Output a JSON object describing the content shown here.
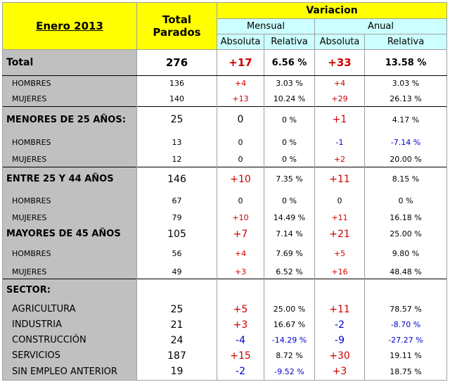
{
  "header": {
    "title": "Enero 2013",
    "total_line1": "Total",
    "total_line2": "Parados",
    "variacion": "Variacion",
    "mensual": "Mensual",
    "anual": "Anual",
    "absoluta_m": "Absoluta",
    "relativa_m": "Relativa",
    "absoluta_a": "Absoluta",
    "relativa_a": "Relativa"
  },
  "rows": [
    {
      "label": "Total",
      "total": "276",
      "m_abs": "+17",
      "m_rel": "6.56 %",
      "a_abs": "+33",
      "a_rel": "13.58 %"
    },
    {
      "label": "HOMBRES",
      "total": "136",
      "m_abs": "+4",
      "m_rel": "3.03 %",
      "a_abs": "+4",
      "a_rel": "3.03 %"
    },
    {
      "label": "MUJERES",
      "total": "140",
      "m_abs": "+13",
      "m_rel": "10.24 %",
      "a_abs": "+29",
      "a_rel": "26.13 %"
    },
    {
      "label": "MENORES DE 25 AÑOS:",
      "total": "25",
      "m_abs": "0",
      "m_rel": "0 %",
      "a_abs": "+1",
      "a_rel": "4.17 %"
    },
    {
      "label": "HOMBRES",
      "total": "13",
      "m_abs": "0",
      "m_rel": "0 %",
      "a_abs": "-1",
      "a_rel": "-7.14 %"
    },
    {
      "label": "MUJERES",
      "total": "12",
      "m_abs": "0",
      "m_rel": "0 %",
      "a_abs": "+2",
      "a_rel": "20.00 %"
    },
    {
      "label": "ENTRE 25 Y 44 AÑOS",
      "total": "146",
      "m_abs": "+10",
      "m_rel": "7.35 %",
      "a_abs": "+11",
      "a_rel": "8.15 %"
    },
    {
      "label": "HOMBRES",
      "total": "67",
      "m_abs": "0",
      "m_rel": "0 %",
      "a_abs": "0",
      "a_rel": "0 %"
    },
    {
      "label": "MUJERES",
      "total": "79",
      "m_abs": "+10",
      "m_rel": "14.49 %",
      "a_abs": "+11",
      "a_rel": "16.18 %"
    },
    {
      "label": "MAYORES DE 45 AÑOS",
      "total": "105",
      "m_abs": "+7",
      "m_rel": "7.14 %",
      "a_abs": "+21",
      "a_rel": "25.00 %"
    },
    {
      "label": "HOMBRES",
      "total": "56",
      "m_abs": "+4",
      "m_rel": "7.69 %",
      "a_abs": "+5",
      "a_rel": "9.80 %"
    },
    {
      "label": "MUJERES",
      "total": "49",
      "m_abs": "+3",
      "m_rel": "6.52 %",
      "a_abs": "+16",
      "a_rel": "48.48 %"
    },
    {
      "label": "SECTOR:"
    },
    {
      "label": "AGRICULTURA",
      "total": "25",
      "m_abs": "+5",
      "m_rel": "25.00 %",
      "a_abs": "+11",
      "a_rel": "78.57 %"
    },
    {
      "label": "INDUSTRIA",
      "total": "21",
      "m_abs": "+3",
      "m_rel": "16.67 %",
      "a_abs": "-2",
      "a_rel": "-8.70 %"
    },
    {
      "label": "CONSTRUCCIÓN",
      "total": "24",
      "m_abs": "-4",
      "m_rel": "-14.29 %",
      "a_abs": "-9",
      "a_rel": "-27.27 %"
    },
    {
      "label": "SERVICIOS",
      "total": "187",
      "m_abs": "+15",
      "m_rel": "8.72 %",
      "a_abs": "+30",
      "a_rel": "19.11 %"
    },
    {
      "label": "SIN EMPLEO ANTERIOR",
      "total": "19",
      "m_abs": "-2",
      "m_rel": "-9.52 %",
      "a_abs": "+3",
      "a_rel": "18.75 %"
    }
  ]
}
